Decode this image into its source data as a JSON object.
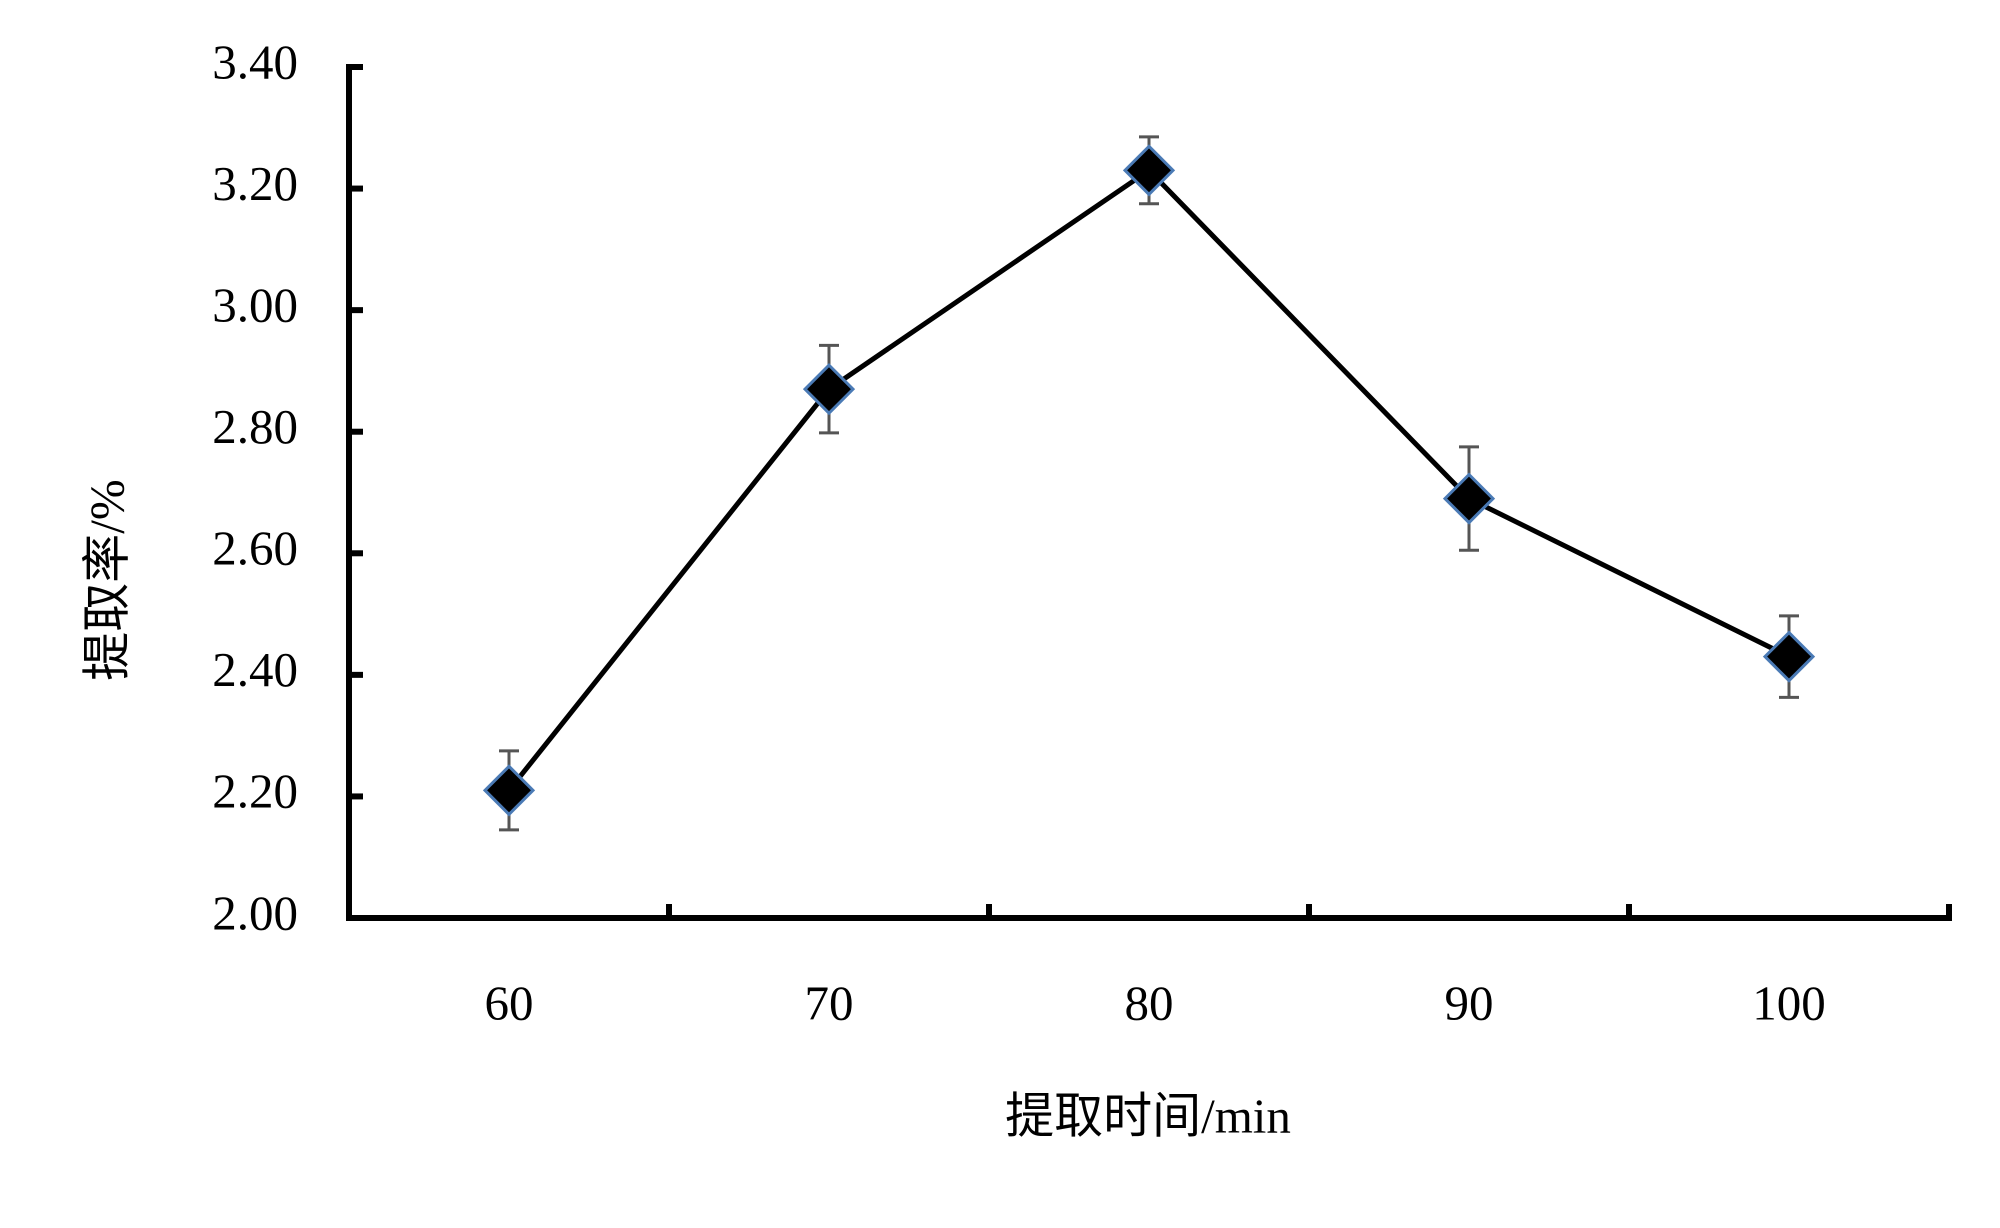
{
  "chart_data": {
    "type": "line",
    "x_label": "提取时间/min",
    "y_label": "提取率/%",
    "categories": [
      "60",
      "70",
      "80",
      "90",
      "100"
    ],
    "series": [
      {
        "color": "#000000",
        "marker_edge": "#4a7ab5",
        "values": [
          2.21,
          2.87,
          3.23,
          2.69,
          2.43
        ],
        "errors": [
          0.065,
          0.072,
          0.055,
          0.085,
          0.067
        ]
      }
    ],
    "ylim": [
      2.0,
      3.4
    ],
    "yticks": [
      {
        "value": 2.0,
        "label": "2.00"
      },
      {
        "value": 2.2,
        "label": "2.20"
      },
      {
        "value": 2.4,
        "label": "2.40"
      },
      {
        "value": 2.6,
        "label": "2.60"
      },
      {
        "value": 2.8,
        "label": "2.80"
      },
      {
        "value": 3.0,
        "label": "3.00"
      },
      {
        "value": 3.2,
        "label": "3.20"
      },
      {
        "value": 3.4,
        "label": "3.40"
      }
    ],
    "grid": false
  }
}
